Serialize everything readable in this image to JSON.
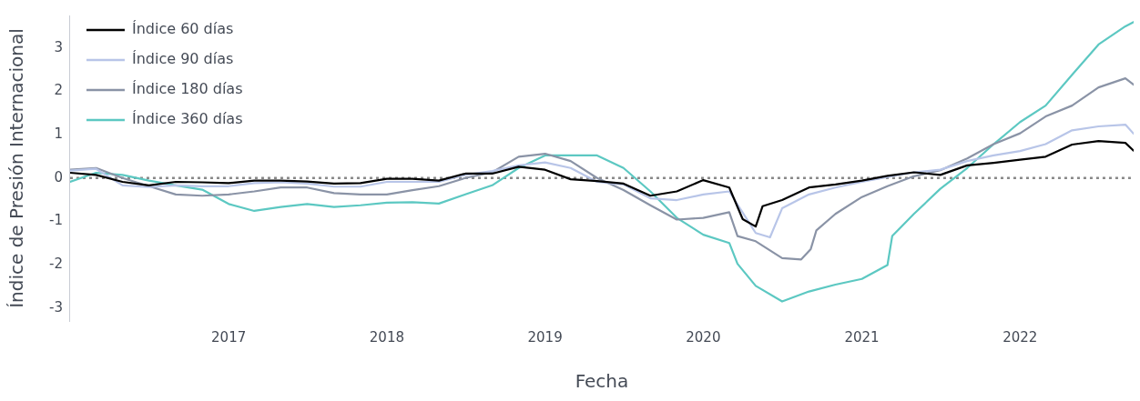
{
  "chart_data": {
    "type": "line",
    "xlabel": "Fecha",
    "ylabel": "Índice de Presión Internacional",
    "legend": "top left",
    "grid": false,
    "line_style": "solid",
    "marker": "none",
    "xlim": [
      "2016-01-01",
      "2022-09-20"
    ],
    "xticks": [
      "2017",
      "2018",
      "2019",
      "2020",
      "2021",
      "2022"
    ],
    "ylim": [
      -3.3,
      3.75
    ],
    "yticks": [
      -3,
      -2,
      -1,
      0,
      1,
      2,
      3
    ],
    "ref_lines": [
      {
        "axis": "y",
        "value": 0,
        "color": "#888888",
        "line_style": "dotted"
      }
    ],
    "series": [
      {
        "name": "Índice 60 días",
        "color": "#000000",
        "x": [
          "2016-01",
          "2016-03",
          "2016-05",
          "2016-07",
          "2016-09",
          "2016-11",
          "2017-01",
          "2017-03",
          "2017-05",
          "2017-07",
          "2017-09",
          "2017-11",
          "2018-01",
          "2018-03",
          "2018-05",
          "2018-07",
          "2018-09",
          "2018-11",
          "2019-01",
          "2019-03",
          "2019-05",
          "2019-07",
          "2019-09",
          "2019-11",
          "2020-01",
          "2020-03",
          "2020-04",
          "2020-05",
          "2020-05-17",
          "2020-07",
          "2020-09",
          "2020-11",
          "2021-01",
          "2021-03",
          "2021-05",
          "2021-07",
          "2021-09",
          "2021-11",
          "2022-01",
          "2022-03",
          "2022-05",
          "2022-07",
          "2022-09",
          "2022-09-20"
        ],
        "values": [
          0.12,
          0.07,
          -0.09,
          -0.17,
          -0.09,
          -0.1,
          -0.12,
          -0.06,
          -0.06,
          -0.08,
          -0.13,
          -0.12,
          -0.02,
          -0.02,
          -0.06,
          0.1,
          0.1,
          0.26,
          0.19,
          -0.03,
          -0.07,
          -0.13,
          -0.41,
          -0.31,
          -0.05,
          -0.22,
          -0.95,
          -1.12,
          -0.65,
          -0.51,
          -0.22,
          -0.15,
          -0.06,
          0.05,
          0.13,
          0.07,
          0.29,
          0.35,
          0.42,
          0.49,
          0.77,
          0.85,
          0.81,
          0.63
        ]
      },
      {
        "name": "Índice 90 días",
        "color": "#b8c5e8",
        "x": [
          "2016-01",
          "2016-03",
          "2016-05",
          "2016-07",
          "2016-09",
          "2016-11",
          "2017-01",
          "2017-03",
          "2017-05",
          "2017-07",
          "2017-09",
          "2017-11",
          "2018-01",
          "2018-03",
          "2018-05",
          "2018-07",
          "2018-09",
          "2018-11",
          "2019-01",
          "2019-03",
          "2019-05",
          "2019-07",
          "2019-09",
          "2019-11",
          "2020-01",
          "2020-03",
          "2020-05",
          "2020-06-03",
          "2020-07",
          "2020-09",
          "2020-11",
          "2021-01",
          "2021-03",
          "2021-05",
          "2021-07",
          "2021-09",
          "2021-11",
          "2022-01",
          "2022-03",
          "2022-05",
          "2022-07",
          "2022-09",
          "2022-09-20"
        ],
        "values": [
          0.17,
          0.21,
          -0.17,
          -0.21,
          -0.17,
          -0.19,
          -0.19,
          -0.12,
          -0.1,
          -0.13,
          -0.2,
          -0.2,
          -0.09,
          -0.09,
          -0.09,
          0.07,
          0.16,
          0.29,
          0.36,
          0.23,
          -0.09,
          -0.15,
          -0.47,
          -0.51,
          -0.38,
          -0.31,
          -1.27,
          -1.37,
          -0.7,
          -0.38,
          -0.22,
          -0.09,
          0.02,
          0.13,
          0.19,
          0.39,
          0.52,
          0.62,
          0.78,
          1.1,
          1.19,
          1.23,
          1.02
        ]
      },
      {
        "name": "Índice 180 días",
        "color": "#8a93a6",
        "x": [
          "2016-01",
          "2016-03",
          "2016-05",
          "2016-07",
          "2016-09",
          "2016-11",
          "2017-01",
          "2017-03",
          "2017-05",
          "2017-07",
          "2017-09",
          "2017-11",
          "2018-01",
          "2018-03",
          "2018-05",
          "2018-07",
          "2018-09",
          "2018-11",
          "2019-01",
          "2019-03",
          "2019-05",
          "2019-07",
          "2019-09",
          "2019-11",
          "2020-01",
          "2020-03",
          "2020-03-20",
          "2020-05",
          "2020-07",
          "2020-08-14",
          "2020-09-05",
          "2020-09-18",
          "2020-11",
          "2021-01",
          "2021-03",
          "2021-05",
          "2021-07",
          "2021-09",
          "2021-11",
          "2022-01",
          "2022-03",
          "2022-05",
          "2022-07",
          "2022-09",
          "2022-09-20"
        ],
        "values": [
          0.19,
          0.23,
          0,
          -0.19,
          -0.38,
          -0.41,
          -0.38,
          -0.31,
          -0.22,
          -0.22,
          -0.35,
          -0.38,
          -0.38,
          -0.28,
          -0.19,
          0,
          0.13,
          0.49,
          0.56,
          0.39,
          0,
          -0.28,
          -0.63,
          -0.96,
          -0.92,
          -0.79,
          -1.34,
          -1.46,
          -1.85,
          -1.88,
          -1.64,
          -1.21,
          -0.83,
          -0.44,
          -0.19,
          0.04,
          0.18,
          0.45,
          0.78,
          1.03,
          1.42,
          1.67,
          2.09,
          2.3,
          2.15
        ]
      },
      {
        "name": "Índice 360 días",
        "color": "#5cc8c2",
        "x": [
          "2016-01",
          "2016-03",
          "2016-05",
          "2016-07",
          "2016-09",
          "2016-11",
          "2017-01",
          "2017-03",
          "2017-05",
          "2017-07",
          "2017-09",
          "2017-11",
          "2018-01",
          "2018-03",
          "2018-05",
          "2018-07",
          "2018-09",
          "2018-11",
          "2019-01",
          "2019-03",
          "2019-05",
          "2019-07",
          "2019-09",
          "2019-11",
          "2020-01",
          "2020-03",
          "2020-03-20",
          "2020-05",
          "2020-07",
          "2020-09",
          "2020-11",
          "2021-01",
          "2021-03",
          "2021-03-12",
          "2021-05",
          "2021-07",
          "2021-09",
          "2021-11",
          "2022-01",
          "2022-03",
          "2022-05",
          "2022-07",
          "2022-09",
          "2022-09-20"
        ],
        "values": [
          -0.09,
          0.12,
          0.07,
          -0.06,
          -0.17,
          -0.27,
          -0.6,
          -0.76,
          -0.67,
          -0.6,
          -0.67,
          -0.63,
          -0.57,
          -0.56,
          -0.59,
          -0.38,
          -0.17,
          0.23,
          0.52,
          0.52,
          0.52,
          0.23,
          -0.31,
          -0.92,
          -1.31,
          -1.5,
          -1.98,
          -2.49,
          -2.85,
          -2.62,
          -2.46,
          -2.33,
          -2.01,
          -1.34,
          -0.83,
          -0.25,
          0.23,
          0.78,
          1.29,
          1.67,
          2.38,
          3.08,
          3.5,
          3.6
        ]
      }
    ]
  }
}
